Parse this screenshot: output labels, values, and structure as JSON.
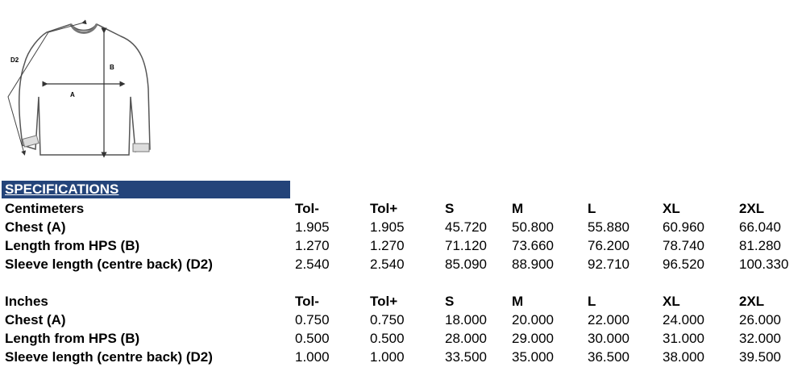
{
  "illustration": {
    "label_d2": "D2",
    "label_b": "B",
    "label_a": "A"
  },
  "banner": "SPECIFICATIONS",
  "columns": [
    "Tol-",
    "Tol+",
    "S",
    "M",
    "L",
    "XL",
    "2XL"
  ],
  "centimeters": {
    "title": "Centimeters",
    "rows": [
      {
        "label": "Chest (A)",
        "values": [
          "1.905",
          "1.905",
          "45.720",
          "50.800",
          "55.880",
          "60.960",
          "66.040"
        ]
      },
      {
        "label": "Length from HPS (B)",
        "values": [
          "1.270",
          "1.270",
          "71.120",
          "73.660",
          "76.200",
          "78.740",
          "81.280"
        ]
      },
      {
        "label": "Sleeve length (centre back) (D2)",
        "values": [
          "2.540",
          "2.540",
          "85.090",
          "88.900",
          "92.710",
          "96.520",
          "100.330"
        ]
      }
    ]
  },
  "inches": {
    "title": "Inches",
    "rows": [
      {
        "label": "Chest (A)",
        "values": [
          "0.750",
          "0.750",
          "18.000",
          "20.000",
          "22.000",
          "24.000",
          "26.000"
        ]
      },
      {
        "label": "Length from HPS (B)",
        "values": [
          "0.500",
          "0.500",
          "28.000",
          "29.000",
          "30.000",
          "31.000",
          "32.000"
        ]
      },
      {
        "label": "Sleeve length (centre back) (D2)",
        "values": [
          "1.000",
          "1.000",
          "33.500",
          "35.000",
          "36.500",
          "38.000",
          "39.500"
        ]
      }
    ]
  }
}
